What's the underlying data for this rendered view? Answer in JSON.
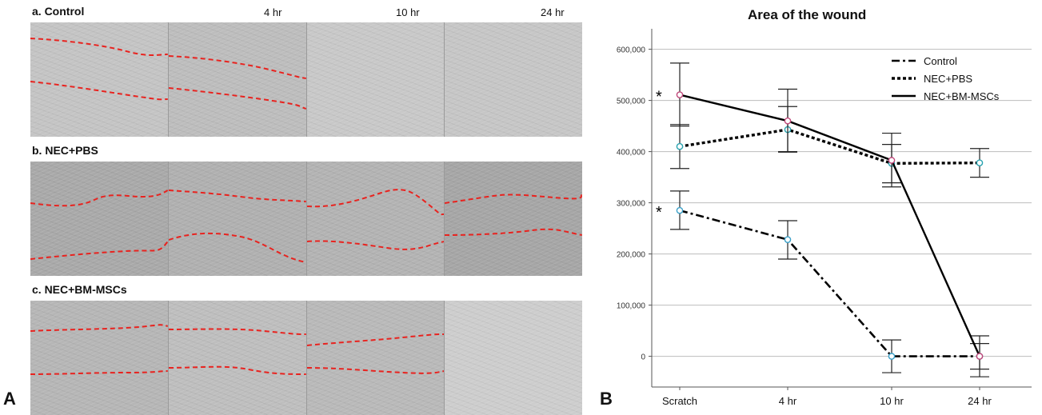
{
  "panel_a": {
    "letter": "A",
    "time_labels": [
      "4 hr",
      "10 hr",
      "24 hr"
    ],
    "rows": [
      {
        "label": "a. Control",
        "cell_colors": [
          "#c4c4c4",
          "#bdbdbd",
          "#c8c8c8",
          "#c6c6c6"
        ]
      },
      {
        "label": "b. NEC+PBS",
        "cell_colors": [
          "#a9a9a9",
          "#b0b0b0",
          "#b3b3b3",
          "#a6a6a6"
        ]
      },
      {
        "label": "c. NEC+BM-MSCs",
        "cell_colors": [
          "#b6b6b6",
          "#bebebe",
          "#b9b9b9",
          "#cdcdcd"
        ]
      }
    ],
    "line_color": "#e8231f"
  },
  "panel_b": {
    "letter": "B"
  },
  "chart_data": {
    "type": "line",
    "title": "Area of the wound",
    "categories": [
      "Scratch",
      "4 hr",
      "10 hr",
      "24 hr"
    ],
    "ylim": [
      -60000,
      640000
    ],
    "yticks": [
      0,
      100000,
      200000,
      300000,
      400000,
      500000,
      600000
    ],
    "ytick_labels": [
      "0",
      "100,000",
      "200,000",
      "300,000",
      "400,000",
      "500,000",
      "600,000"
    ],
    "grid": true,
    "legend_position": "top-right",
    "series": [
      {
        "name": "Control",
        "style": "dashdot",
        "marker_color": "#3aa0c8",
        "points": [
          {
            "category": "Scratch",
            "value": 285000,
            "err_low": 248000,
            "err_high": 323000
          },
          {
            "category": "4 hr",
            "value": 228000,
            "err_low": 190000,
            "err_high": 265000
          },
          {
            "category": "10 hr",
            "value": 0,
            "err_low": -32000,
            "err_high": 32000
          },
          {
            "category": "24 hr",
            "value": 0,
            "err_low": -25000,
            "err_high": 25000
          }
        ]
      },
      {
        "name": "NEC+PBS",
        "style": "dotted",
        "marker_color": "#2aa3b0",
        "points": [
          {
            "category": "Scratch",
            "value": 410000,
            "err_low": 367000,
            "err_high": 453000
          },
          {
            "category": "4 hr",
            "value": 443000,
            "err_low": 400000,
            "err_high": 488000
          },
          {
            "category": "10 hr",
            "value": 377000,
            "err_low": 339000,
            "err_high": 414000
          },
          {
            "category": "24 hr",
            "value": 378000,
            "err_low": 350000,
            "err_high": 406000
          }
        ]
      },
      {
        "name": "NEC+BM-MSCs",
        "style": "solid",
        "marker_color": "#c0487a",
        "points": [
          {
            "category": "Scratch",
            "value": 511000,
            "err_low": 450000,
            "err_high": 573000
          },
          {
            "category": "4 hr",
            "value": 460000,
            "err_low": 399000,
            "err_high": 522000
          },
          {
            "category": "10 hr",
            "value": 383000,
            "err_low": 331000,
            "err_high": 436000
          },
          {
            "category": "24 hr",
            "value": 0,
            "err_low": -40000,
            "err_high": 40000
          }
        ]
      }
    ],
    "annotations": [
      {
        "text": "*",
        "category": "Scratch",
        "value": 511000
      },
      {
        "text": "*",
        "category": "Scratch",
        "value": 285000
      }
    ]
  }
}
